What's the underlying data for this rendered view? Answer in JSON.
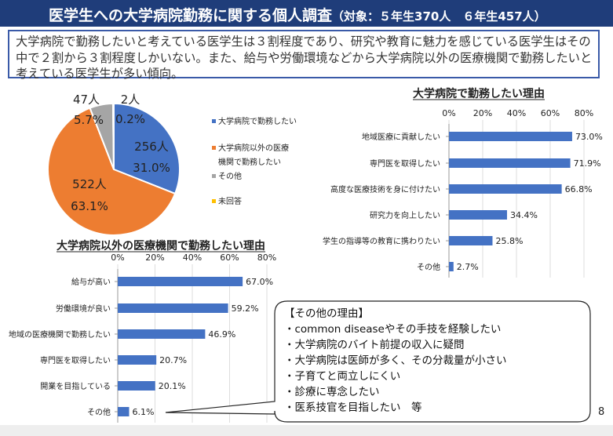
{
  "title": {
    "main": "医学生への大学病院勤務に関する個人調査",
    "sub": "（対象：５年生370人　６年生457人）"
  },
  "summary": "大学病院で勤務したいと考えている医学生は３割程度であり、研究や教育に魅力を感じている医学生はその中で２割から３割程度しかいない。また、給与や労働環境などから大学病院以外の医療機関で勤務したいと考えている医学生が多い傾向。",
  "callout": {
    "text": "【その他の理由】\n・common diseaseやその手技を経験したい\n・大学病院のバイト前提の収入に疑問\n・大学病院は医師が多く、その分裁量が小さい\n・子育てと両立しにくい\n・診療に専念したい\n・医系技官を目指したい　等"
  },
  "page_number": "8",
  "colors": {
    "accent": "#1f3d7a",
    "blue": "#4472c4",
    "orange": "#ed7d31",
    "gray": "#a5a5a5",
    "yellow": "#ffc000"
  },
  "chart_data": [
    {
      "type": "pie",
      "slices": [
        {
          "name": "大学病院で勤務したい",
          "count": "256人",
          "percent": 31.0,
          "percent_label": "31.0%",
          "color": "#4472c4"
        },
        {
          "name": "大学病院以外の医療機関で勤務したい",
          "legend_lines": [
            "大学病院以外の医療",
            "機関で勤務したい"
          ],
          "count": "522人",
          "percent": 63.1,
          "percent_label": "63.1%",
          "color": "#ed7d31"
        },
        {
          "name": "その他",
          "count": "47人",
          "percent": 5.7,
          "percent_label": "5.7%",
          "color": "#a5a5a5"
        },
        {
          "name": "未回答",
          "count": "2人",
          "percent": 0.2,
          "percent_label": "0.2%",
          "color": "#ffc000"
        }
      ]
    },
    {
      "type": "bar",
      "orientation": "horizontal",
      "title": "大学病院で勤務したい理由",
      "xlim": [
        0,
        80
      ],
      "ticks": [
        "0%",
        "20%",
        "40%",
        "60%",
        "80%"
      ],
      "categories": [
        "地域医療に貢献したい",
        "専門医を取得したい",
        "高度な医療技術を身に付けたい",
        "研究力を向上したい",
        "学生の指導等の教育に携わりたい",
        "その他"
      ],
      "values": [
        73.0,
        71.9,
        66.8,
        34.4,
        25.8,
        2.7
      ],
      "value_labels": [
        "73.0%",
        "71.9%",
        "66.8%",
        "34.4%",
        "25.8%",
        "2.7%"
      ],
      "color": "#4472c4"
    },
    {
      "type": "bar",
      "orientation": "horizontal",
      "title": "大学病院以外の医療機関で勤務したい理由",
      "xlim": [
        0,
        80
      ],
      "ticks": [
        "0%",
        "20%",
        "40%",
        "60%",
        "80%"
      ],
      "categories": [
        "給与が高い",
        "労働環境が良い",
        "地域の医療機関で勤務したい",
        "専門医を取得したい",
        "開業を目指している",
        "その他"
      ],
      "values": [
        67.0,
        59.2,
        46.9,
        20.7,
        20.1,
        6.1
      ],
      "value_labels": [
        "67.0%",
        "59.2%",
        "46.9%",
        "20.7%",
        "20.1%",
        "6.1%"
      ],
      "color": "#4472c4"
    }
  ]
}
